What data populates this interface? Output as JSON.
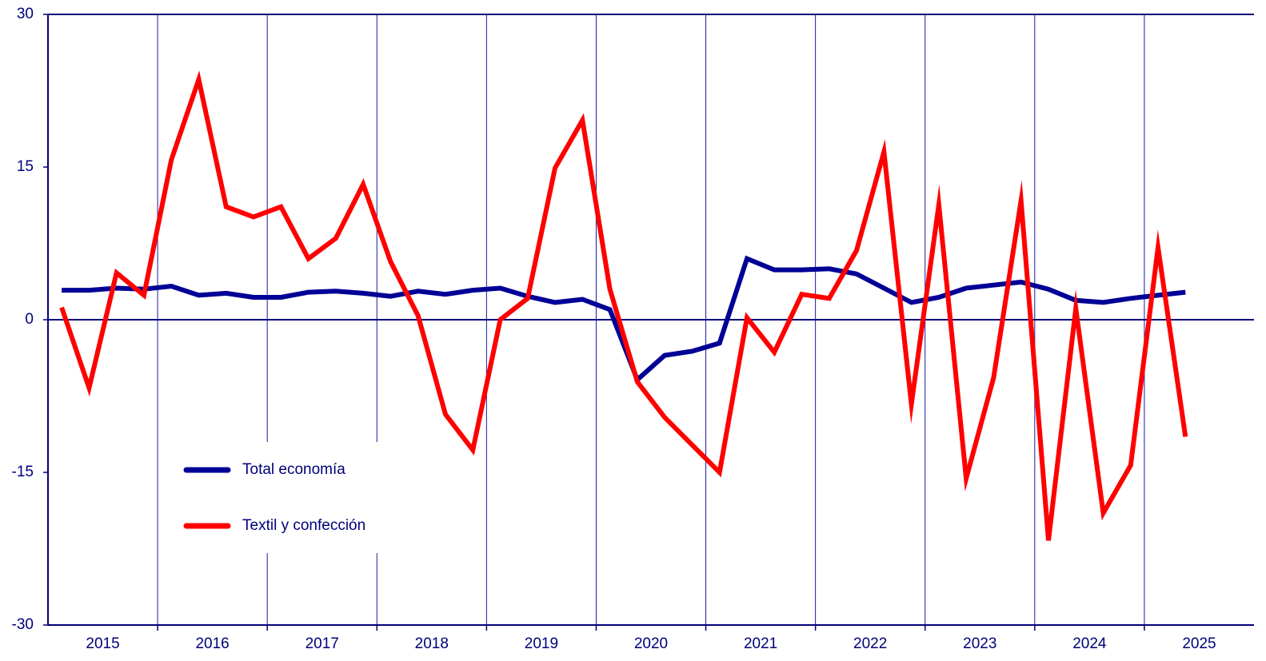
{
  "chart_data": {
    "type": "line",
    "categories": [
      "2015",
      null,
      null,
      null,
      "2016",
      null,
      null,
      null,
      "2017",
      null,
      null,
      null,
      "2018",
      null,
      null,
      null,
      "2019",
      null,
      null,
      null,
      "2020",
      null,
      null,
      null,
      "2021",
      null,
      null,
      null,
      "2022",
      null,
      null,
      null,
      "2023",
      null,
      null,
      null,
      "2024",
      null,
      null,
      null,
      "2025",
      null
    ],
    "series": [
      {
        "name": "Total economía",
        "color": "#000096",
        "values": [
          2.9,
          2.9,
          3.1,
          3.0,
          3.3,
          2.4,
          2.6,
          2.2,
          2.2,
          2.7,
          2.8,
          2.6,
          2.3,
          2.8,
          2.5,
          2.9,
          3.1,
          2.3,
          1.7,
          2.0,
          1.0,
          -5.9,
          -3.5,
          -3.1,
          -2.3,
          6.0,
          4.9,
          4.9,
          5.0,
          4.5,
          3.1,
          1.7,
          2.2,
          3.1,
          3.4,
          3.7,
          3.0,
          1.9,
          1.7,
          2.1,
          2.4,
          2.7
        ]
      },
      {
        "name": "Textil y confección",
        "color": "#ff0000",
        "values": [
          1.2,
          -6.7,
          4.6,
          2.4,
          15.7,
          23.6,
          11.1,
          10.1,
          11.1,
          6.0,
          8.0,
          13.3,
          5.7,
          0.4,
          -9.3,
          -12.8,
          0,
          2.1,
          14.9,
          19.6,
          3.0,
          -6.1,
          -9.6,
          -12.3,
          -15.0,
          0.2,
          -3.2,
          2.5,
          2.1,
          6.8,
          16.5,
          -8.3,
          11.3,
          -15.6,
          -5.7,
          11.7,
          -21.7,
          1.1,
          -19.0,
          -14.3,
          7.1,
          -11.5
        ]
      }
    ],
    "ylim": [
      -30,
      30
    ],
    "yticks": [
      30,
      15,
      0,
      -15,
      -30
    ]
  }
}
